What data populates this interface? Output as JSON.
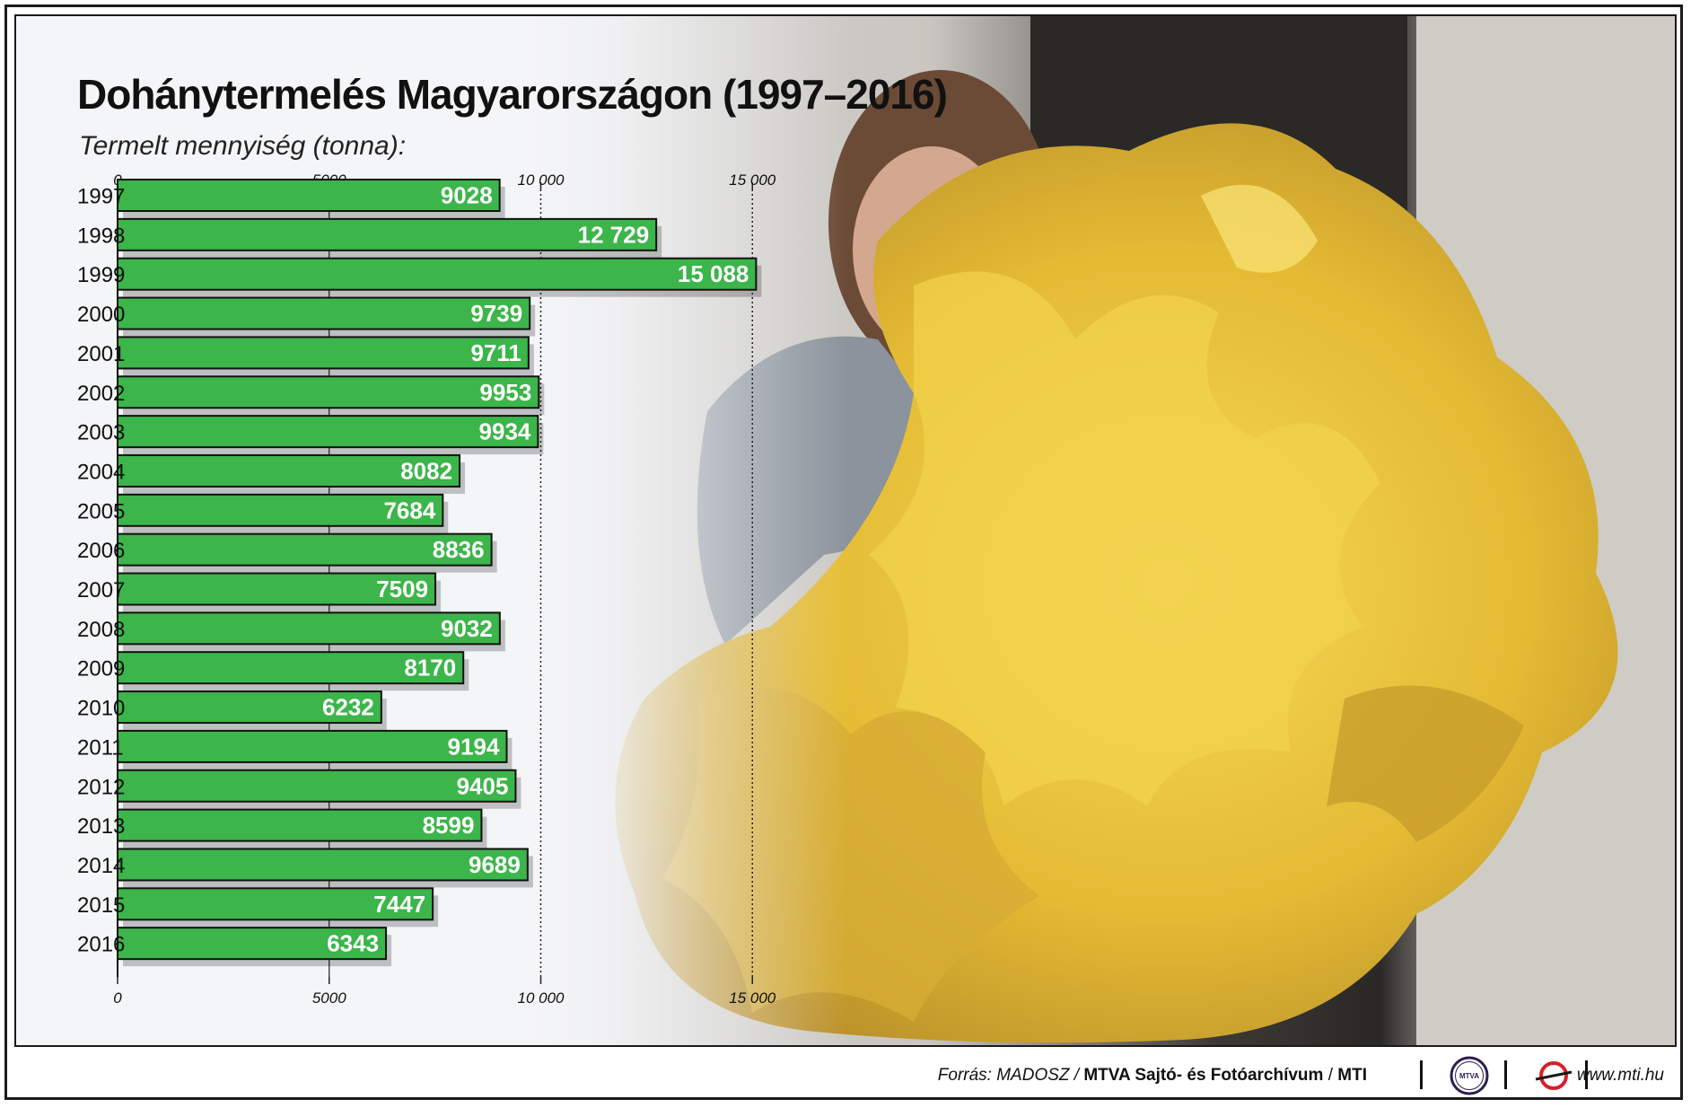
{
  "title": "Dohánytermelés Magyarországon (1997–2016)",
  "subtitle": "Termelt mennyiség (tonna):",
  "colors": {
    "bar": "#3cb54a",
    "bar_stroke": "#111111",
    "label": "#ffffff",
    "leaf": "#e8c23a"
  },
  "chart_data": {
    "type": "bar",
    "orientation": "horizontal",
    "categories": [
      "1997",
      "1998",
      "1999",
      "2000",
      "2001",
      "2002",
      "2003",
      "2004",
      "2005",
      "2006",
      "2007",
      "2008",
      "2009",
      "2010",
      "2011",
      "2012",
      "2013",
      "2014",
      "2015",
      "2016"
    ],
    "values": [
      9028,
      12729,
      15088,
      9739,
      9711,
      9953,
      9934,
      8082,
      7684,
      8836,
      7509,
      9032,
      8170,
      6232,
      9194,
      9405,
      8599,
      9689,
      7447,
      6343
    ],
    "value_labels": [
      "9028",
      "12 729",
      "15 088",
      "9739",
      "9711",
      "9953",
      "9934",
      "8082",
      "7684",
      "8836",
      "7509",
      "9032",
      "8170",
      "6232",
      "9194",
      "9405",
      "8599",
      "9689",
      "7447",
      "6343"
    ],
    "xlim": [
      0,
      15000
    ],
    "ticks": [
      0,
      5000,
      10000,
      15000
    ],
    "tick_labels": [
      "0",
      "5000",
      "10 000",
      "15 000"
    ],
    "grid": "dotted vertical lines at 10 000 and 15 000",
    "axis_position": "top and bottom"
  },
  "footer": {
    "source_prefix": "Forrás: MADOSZ /",
    "source_bold": "MTVA Sajtó- és Fotóarchívum",
    "source_sep": "/",
    "source_mti": "MTI",
    "logo_text": "MTVA",
    "url": "www.mti.hu"
  }
}
